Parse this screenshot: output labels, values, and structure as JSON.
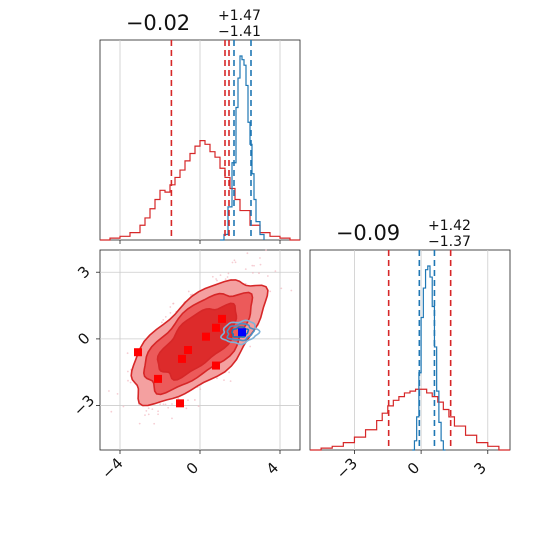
{
  "chart_data": [
    {
      "type": "histogram",
      "panel": "marginal-param-1",
      "title": {
        "median": "−0.02",
        "plus": "+1.47",
        "minus": "−1.41"
      },
      "xlim": [
        -5,
        5
      ],
      "grid": true,
      "colors": {
        "wide": "#d62728",
        "narrow": "#1f77b4"
      },
      "series": [
        {
          "name": "",
          "color": "#d62728",
          "bins_x": [
            -5.0,
            -4.5,
            -4.0,
            -3.5,
            -3.0,
            -2.75,
            -2.5,
            -2.25,
            -2.0,
            -1.75,
            -1.5,
            -1.25,
            -1.0,
            -0.75,
            -0.5,
            -0.25,
            0.0,
            0.25,
            0.5,
            0.75,
            1.0,
            1.25,
            1.5,
            1.75,
            2.0,
            2.5,
            3.0,
            3.5,
            4.0,
            4.5,
            5.0
          ],
          "counts": [
            0,
            0.01,
            0.02,
            0.04,
            0.08,
            0.12,
            0.17,
            0.22,
            0.27,
            0.26,
            0.3,
            0.34,
            0.38,
            0.43,
            0.47,
            0.51,
            0.54,
            0.52,
            0.48,
            0.45,
            0.39,
            0.34,
            0.28,
            0.22,
            0.16,
            0.08,
            0.04,
            0.02,
            0.01,
            0
          ]
        },
        {
          "name": "",
          "color": "#1f77b4",
          "bins_x": [
            1.0,
            1.2,
            1.4,
            1.6,
            1.8,
            1.9,
            2.0,
            2.1,
            2.2,
            2.3,
            2.4,
            2.5,
            2.6,
            2.7,
            2.8,
            3.0,
            3.2
          ],
          "counts": [
            0,
            0.03,
            0.18,
            0.42,
            0.72,
            0.88,
            1.0,
            0.98,
            0.95,
            0.84,
            0.64,
            0.52,
            0.36,
            0.22,
            0.1,
            0.03
          ]
        }
      ],
      "quantile_lines": {
        "red": [
          -1.43,
          1.45
        ],
        "blue": [
          1.7,
          2.55
        ]
      },
      "vertical_markers": {
        "red_dashed_mid": 1.25
      }
    },
    {
      "type": "histogram",
      "panel": "marginal-param-2",
      "title": {
        "median": "−0.09",
        "plus": "+1.42",
        "minus": "−1.37"
      },
      "xlim": [
        -5,
        4
      ],
      "xticks": [
        -3,
        0,
        3
      ],
      "xtick_labels": [
        "−3",
        "0",
        "3"
      ],
      "grid": true,
      "series": [
        {
          "name": "",
          "color": "#d62728",
          "bins_x": [
            -5.0,
            -4.5,
            -4.0,
            -3.5,
            -3.0,
            -2.5,
            -2.0,
            -1.75,
            -1.5,
            -1.25,
            -1.0,
            -0.75,
            -0.5,
            -0.25,
            0.0,
            0.25,
            0.5,
            0.75,
            1.0,
            1.25,
            1.5,
            2.0,
            2.5,
            3.0,
            3.5,
            4.0
          ],
          "counts": [
            0,
            0.01,
            0.02,
            0.04,
            0.07,
            0.11,
            0.16,
            0.2,
            0.24,
            0.27,
            0.29,
            0.31,
            0.32,
            0.33,
            0.33,
            0.31,
            0.29,
            0.26,
            0.22,
            0.18,
            0.13,
            0.08,
            0.04,
            0.02,
            0
          ]
        },
        {
          "name": "",
          "color": "#1f77b4",
          "bins_x": [
            -0.4,
            -0.3,
            -0.2,
            -0.1,
            0.0,
            0.1,
            0.2,
            0.3,
            0.4,
            0.5,
            0.6,
            0.7,
            0.8,
            0.9,
            1.0,
            1.1
          ],
          "counts": [
            0,
            0.05,
            0.18,
            0.42,
            0.72,
            0.88,
            0.98,
            1.0,
            0.94,
            0.78,
            0.56,
            0.32,
            0.15,
            0.05,
            0
          ]
        }
      ],
      "quantile_lines": {
        "red": [
          -1.46,
          1.33
        ],
        "blue": [
          -0.08,
          0.6
        ]
      }
    },
    {
      "type": "contour",
      "panel": "joint-param-1-param-2",
      "xlim": [
        -5,
        5
      ],
      "ylim": [
        -5,
        4
      ],
      "xticks": [
        -4,
        0,
        4
      ],
      "xtick_labels": [
        "−4",
        "0",
        "4"
      ],
      "yticks": [
        3,
        0,
        -3
      ],
      "ytick_labels": [
        "3",
        "0",
        "−3"
      ],
      "grid": true,
      "contour_levels": [
        {
          "level": "outer",
          "fill": "#f4a0a0",
          "stroke": "#d62728"
        },
        {
          "level": "middle",
          "fill": "#ec5a5a",
          "stroke": "#d62728"
        },
        {
          "level": "inner",
          "fill": "#dd2b2b",
          "stroke": "#d62728"
        }
      ],
      "blue_contours_center": [
        2.0,
        0.3
      ],
      "red_markers": [
        [
          -3.1,
          -0.6
        ],
        [
          -2.1,
          -1.8
        ],
        [
          -0.9,
          -0.9
        ],
        [
          -0.6,
          -0.5
        ],
        [
          0.3,
          0.1
        ],
        [
          0.8,
          0.5
        ],
        [
          1.1,
          0.9
        ],
        [
          0.8,
          -1.2
        ],
        [
          -1.0,
          -2.9
        ]
      ],
      "blue_marker": [
        2.1,
        0.3
      ]
    }
  ]
}
